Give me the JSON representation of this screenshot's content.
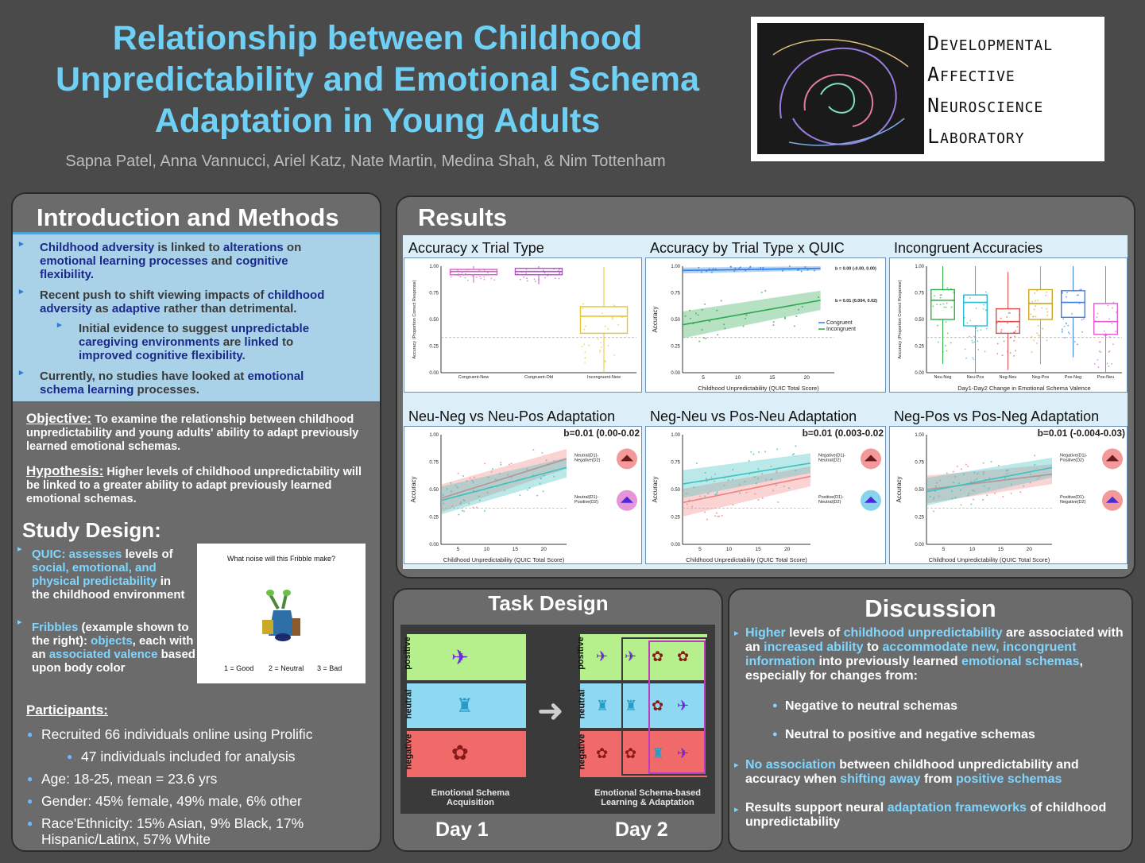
{
  "header": {
    "title_line1": "Relationship between Childhood",
    "title_line2": "Unpredictability and Emotional Schema",
    "title_line3": "Adaptation in Young Adults",
    "authors": "Sapna Patel, Anna Vannucci, Ariel Katz, Nate Martin, Medina Shah, & Nim Tottenham",
    "logo_line1": "Developmental",
    "logo_line2": "Affective",
    "logo_line3": "Neuroscience",
    "logo_line4": "Laboratory"
  },
  "intro": {
    "heading": "Introduction and Methods",
    "b1": {
      "p1": "Childhood adversity",
      "p2": " is linked to ",
      "p3": "alterations",
      "p4": " on ",
      "p5": "emotional learning processes",
      "p6": " and ",
      "p7": "cognitive flexibility",
      "p8": "."
    },
    "b2": {
      "p1": "Recent push to shift viewing impacts of ",
      "p2": "childhood adversity",
      "p3": " as ",
      "p4": "adaptive",
      "p5": " rather than detrimental."
    },
    "b3": {
      "p1": "Initial evidence to suggest ",
      "p2": "unpredictable caregiving environments",
      "p3": " are ",
      "p4": "linked",
      "p5": " to ",
      "p6": "improved cognitive flexibility",
      "p7": "."
    },
    "b4": {
      "p1": "Currently, no studies have looked at ",
      "p2": "emotional schema learning",
      "p3": " processes."
    },
    "objective_label": "Objective:",
    "objective_text": " To examine the relationship between childhood unpredictability and young adults' ability to adapt previously learned emotional schemas.",
    "hypothesis_label": "Hypothesis:",
    "hypothesis_text": " Higher levels of childhood unpredictability will be linked to a greater ability to adapt previously learned emotional schemas."
  },
  "study": {
    "heading": "Study Design:",
    "s1": {
      "p1": "QUIC: assesses",
      "p2": " levels of ",
      "p3": "social, emotional, and physical predictability",
      "p4": " in the childhood environment"
    },
    "s2": {
      "p1": "Fribbles",
      "p2": " (example shown to the right): ",
      "p3": "objects",
      "p4": ", each with an ",
      "p5": "associated valence",
      "p6": " based upon body color"
    },
    "card_question": "What noise will this Fribble make?",
    "card_opt1": "1 = Good",
    "card_opt2": "2 = Neutral",
    "card_opt3": "3 = Bad"
  },
  "participants": {
    "heading": "Participants:",
    "items": [
      "Recruited 66 individuals online using Prolific",
      "47 individuals included for analysis",
      "Age: 18-25, mean = 23.6 yrs",
      "Gender: 45% female, 49% male, 6% other",
      "Race'Ethnicity: 15% Asian, 9% Black, 17% Hispanic/Latinx, 57% White"
    ]
  },
  "results": {
    "heading": "Results",
    "charts": [
      {
        "title": "Accuracy x Trial Type",
        "ylabel": "Accuracy (Proportion Correct Response)"
      },
      {
        "title": "Accuracy by Trial Type x QUIC",
        "ylabel": "Accuracy",
        "xlabel": "Childhood Unpredictability (QUIC Total Score)",
        "ann1": "b = 0.00 (-0.00, 0.00)",
        "ann2": "b = 0.01 (0.004, 0.02)",
        "leg1": "Congruent",
        "leg2": "Incongruent"
      },
      {
        "title": "Incongruent Accuracies",
        "ylabel": "Accuracy (Proportion Correct Response)",
        "xlabel": "Day1-Day2 Change in Emotional Schema Valence"
      },
      {
        "title": "Neu-Neg vs Neu-Pos Adaptation",
        "ann": "b=0.01 (0.00-0.02",
        "ylabel": "Accuracy",
        "xlabel": "Childhood Unpredictability (QUIC Total Score)",
        "leg1a": "Neutral(D1)-",
        "leg1b": "Negative(D2)",
        "leg2a": "Neutral(D1)-",
        "leg2b": "Positive(D2)"
      },
      {
        "title": "Neg-Neu vs Pos-Neu Adaptation",
        "ann": "b=0.01 (0.003-0.02",
        "ylabel": "Accuracy",
        "xlabel": "Childhood Unpredictability (QUIC Total Score)",
        "leg1a": "Negative(D1)-",
        "leg1b": "Neutral(D2)",
        "leg2a": "Positive(D1)-",
        "leg2b": "Neutral(D2)"
      },
      {
        "title": "Neg-Pos vs Pos-Neg Adaptation",
        "ann": "b=0.01 (-0.004-0.03)",
        "ylabel": "Accuracy",
        "xlabel": "Childhood Unpredictability (QUIC Total Score)",
        "leg1a": "Negative(D1)-",
        "leg1b": "Positive(D2)",
        "leg2a": "Positive(D1)-",
        "leg2b": "Negative(D2)"
      }
    ]
  },
  "chart_data": [
    {
      "type": "box",
      "title": "Accuracy x Trial Type",
      "ylabel": "Accuracy (Proportion Correct Response)",
      "categories": [
        "Congruent-New",
        "Congruent-Old",
        "Incongruent-New"
      ],
      "medians": [
        0.95,
        0.95,
        0.53
      ],
      "q1": [
        0.92,
        0.92,
        0.37
      ],
      "q3": [
        0.97,
        0.98,
        0.62
      ],
      "ylim": [
        0,
        1
      ],
      "yticks": [
        "0.00",
        "0.25",
        "0.50",
        "0.75",
        "1.00"
      ],
      "colors": [
        "#e05ad0",
        "#c04ad8",
        "#e8c52a"
      ]
    },
    {
      "type": "scatter",
      "title": "Accuracy by Trial Type x QUIC",
      "xlabel": "Childhood Unpredictability (QUIC Total Score)",
      "ylabel": "Accuracy",
      "xlim": [
        2,
        24
      ],
      "ylim": [
        0,
        1
      ],
      "xticks": [
        "5",
        "10",
        "15",
        "20"
      ],
      "yticks": [
        "0.00",
        "0.25",
        "0.50",
        "0.75",
        "1.00"
      ],
      "series": [
        {
          "name": "Congruent",
          "line": [
            [
              2,
              0.96
            ],
            [
              22,
              0.98
            ]
          ],
          "color": "#2f7fe0"
        },
        {
          "name": "Incongruent",
          "line": [
            [
              2,
              0.45
            ],
            [
              22,
              0.68
            ]
          ],
          "color": "#2fa84f"
        }
      ]
    },
    {
      "type": "box",
      "title": "Incongruent Accuracies",
      "xlabel": "Day1-Day2 Change in Emotional Schema Valence",
      "ylabel": "Accuracy (Proportion Correct Response)",
      "categories": [
        "Neu-Neg",
        "Neu-Pos",
        "Neg-Neu",
        "Neg-Pos",
        "Pos-Neg",
        "Pos-Neu"
      ],
      "medians": [
        0.68,
        0.66,
        0.48,
        0.65,
        0.66,
        0.48
      ],
      "q1": [
        0.5,
        0.44,
        0.37,
        0.5,
        0.52,
        0.36
      ],
      "q3": [
        0.78,
        0.73,
        0.6,
        0.78,
        0.77,
        0.65
      ],
      "ylim": [
        0,
        1
      ],
      "yticks": [
        "0.00",
        "0.25",
        "0.50",
        "0.75",
        "1.00"
      ],
      "colors": [
        "#2fae45",
        "#22bdd0",
        "#e04b4b",
        "#c9a822",
        "#3d7ee8",
        "#e05ad0"
      ]
    },
    {
      "type": "line",
      "title": "Neu-Neg vs Neu-Pos Adaptation",
      "xlabel": "Childhood Unpredictability (QUIC Total Score)",
      "ylabel": "Accuracy",
      "xlim": [
        2,
        24
      ],
      "ylim": [
        0,
        1
      ],
      "xticks": [
        "5",
        "10",
        "15",
        "20"
      ],
      "yticks": [
        "0.00",
        "0.25",
        "0.50",
        "0.75",
        "1.00"
      ],
      "series": [
        {
          "name": "Neutral(D1)-Negative(D2)",
          "line": [
            [
              2,
              0.42
            ],
            [
              24,
              0.78
            ]
          ],
          "color": "#f08080"
        },
        {
          "name": "Neutral(D1)-Positive(D2)",
          "line": [
            [
              2,
              0.4
            ],
            [
              24,
              0.7
            ]
          ],
          "color": "#3cc0c0"
        }
      ]
    },
    {
      "type": "line",
      "title": "Neg-Neu vs Pos-Neu Adaptation",
      "xlabel": "Childhood Unpredictability (QUIC Total Score)",
      "ylabel": "Accuracy",
      "xlim": [
        2,
        24
      ],
      "ylim": [
        0,
        1
      ],
      "xticks": [
        "5",
        "10",
        "15",
        "20"
      ],
      "yticks": [
        "0.00",
        "0.25",
        "0.50",
        "0.75",
        "1.00"
      ],
      "series": [
        {
          "name": "Negative(D1)-Neutral(D2)",
          "line": [
            [
              2,
              0.38
            ],
            [
              24,
              0.62
            ]
          ],
          "color": "#f08080"
        },
        {
          "name": "Positive(D1)-Neutral(D2)",
          "line": [
            [
              2,
              0.55
            ],
            [
              24,
              0.74
            ]
          ],
          "color": "#3cc0c0"
        }
      ]
    },
    {
      "type": "line",
      "title": "Neg-Pos vs Pos-Neg Adaptation",
      "xlabel": "Childhood Unpredictability (QUIC Total Score)",
      "ylabel": "Accuracy",
      "xlim": [
        2,
        24
      ],
      "ylim": [
        0,
        1
      ],
      "xticks": [
        "5",
        "10",
        "15",
        "20"
      ],
      "yticks": [
        "0.00",
        "0.25",
        "0.50",
        "0.75",
        "1.00"
      ],
      "series": [
        {
          "name": "Negative(D1)-Positive(D2)",
          "line": [
            [
              2,
              0.5
            ],
            [
              24,
              0.64
            ]
          ],
          "color": "#f08080"
        },
        {
          "name": "Positive(D1)-Negative(D2)",
          "line": [
            [
              2,
              0.48
            ],
            [
              24,
              0.7
            ]
          ],
          "color": "#3cc0c0"
        }
      ]
    }
  ],
  "task": {
    "heading": "Task Design",
    "row_labels": [
      "positive",
      "neutral",
      "negative"
    ],
    "caption1": "Emotional Schema Acquisition",
    "caption2": "Emotional Schema-based Learning & Adaptation",
    "day1": "Day 1",
    "day2": "Day 2"
  },
  "discussion": {
    "heading": "Discussion",
    "d1": {
      "p1": "Higher",
      "p2": " levels of ",
      "p3": "childhood unpredictability",
      "p4": " are associated with an ",
      "p5": "increased ability",
      "p6": " to ",
      "p7": "accommodate new, incongruent information",
      "p8": " into previously learned ",
      "p9": "emotional schemas",
      "p10": ", especially for changes from:"
    },
    "sub1": "Negative to neutral schemas",
    "sub2": "Neutral to positive and negative schemas",
    "d2": {
      "p1": "No association",
      "p2": " between childhood unpredictability and accuracy when ",
      "p3": "shifting away",
      "p4": " from ",
      "p5": "positive schemas"
    },
    "d3": {
      "p1": "Results support neural ",
      "p2": "adaptation frameworks",
      "p3": " of childhood unpredictability"
    }
  }
}
